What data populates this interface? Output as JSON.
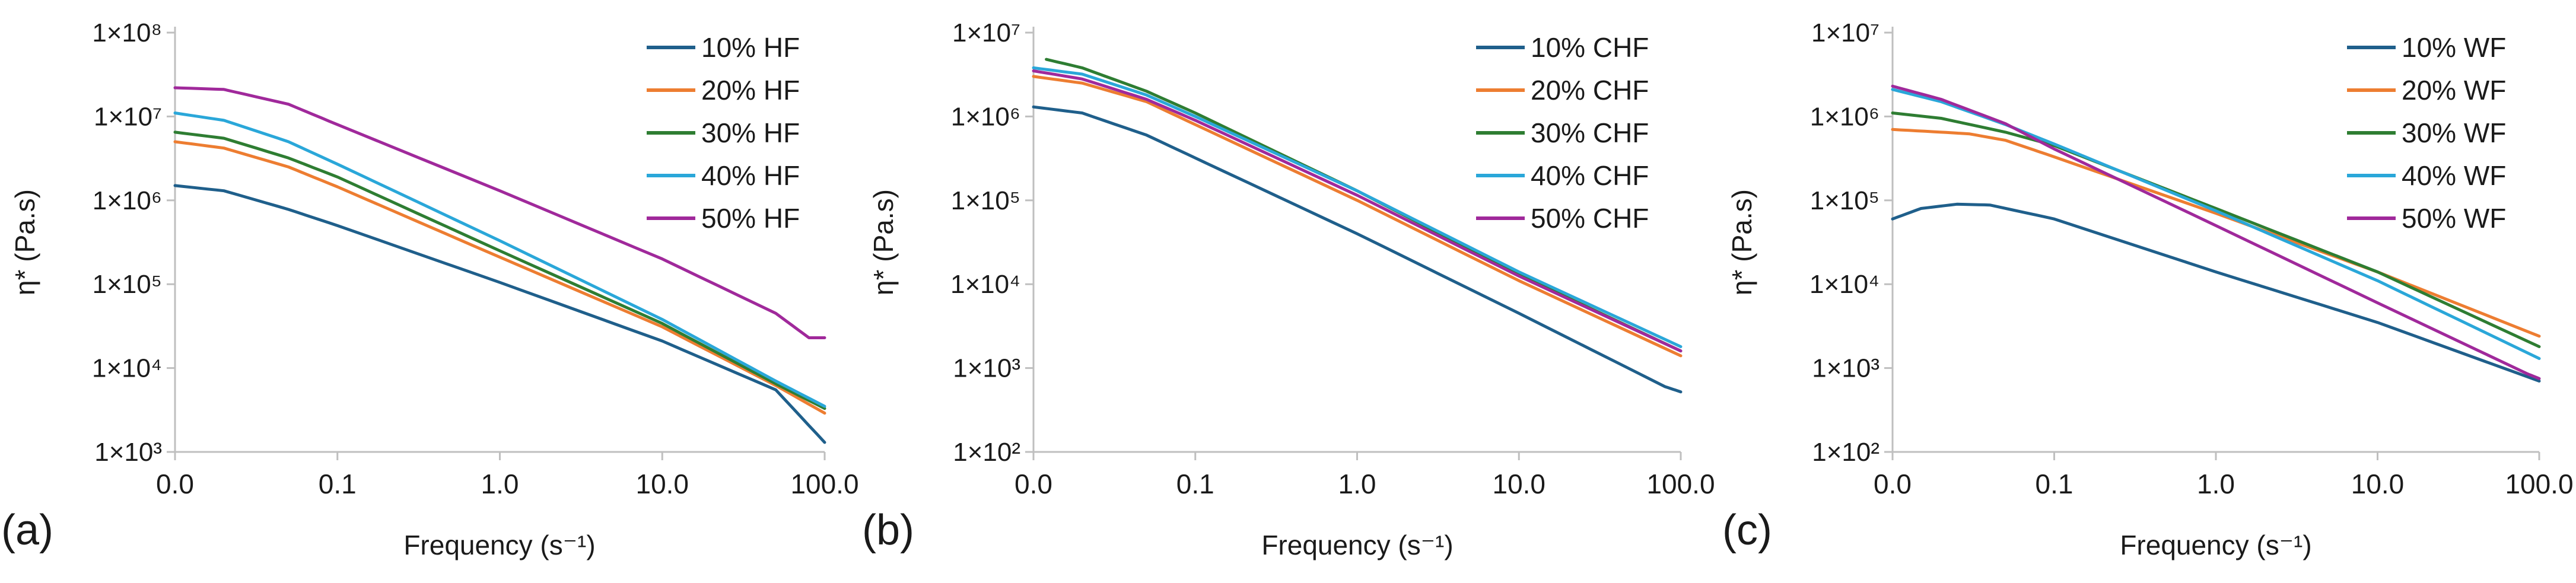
{
  "colors": {
    "axis": "#bfbfbf",
    "text": "#1a1a1a",
    "s10": "#1f5f8b",
    "s20": "#ed7d31",
    "s30": "#2e7d32",
    "s40": "#2aa7d9",
    "s50": "#a0299b"
  },
  "chart_data": [
    {
      "type": "line",
      "panel_label": "(a)",
      "xlabel": "Frequency (s⁻¹)",
      "ylabel": "η* (Pa.s)",
      "xscale": "log",
      "yscale": "log",
      "xlim": [
        0.01,
        100
      ],
      "ylim": [
        1000,
        100000000
      ],
      "xticks": [
        0.01,
        0.1,
        1,
        10,
        100
      ],
      "xtick_labels": [
        "0.0",
        "0.1",
        "1.0",
        "10.0",
        "100.0"
      ],
      "yticks": [
        1000,
        10000,
        100000,
        1000000,
        10000000,
        100000000
      ],
      "ytick_labels": [
        "1×10³",
        "1×10⁴",
        "1×10⁵",
        "1×10⁶",
        "1×10⁷",
        "1×10⁸"
      ],
      "legend_position": "top-right",
      "series": [
        {
          "name": "10% HF",
          "color_key": "s10",
          "x": [
            0.01,
            0.02,
            0.05,
            0.1,
            1,
            10,
            50,
            100
          ],
          "y": [
            1500000,
            1300000,
            780000,
            500000,
            105000,
            21000,
            5500,
            1300
          ]
        },
        {
          "name": "20% HF",
          "color_key": "s20",
          "x": [
            0.01,
            0.02,
            0.05,
            0.1,
            1,
            10,
            50,
            100
          ],
          "y": [
            5000000,
            4200000,
            2500000,
            1450000,
            210000,
            31000,
            6200,
            2900
          ]
        },
        {
          "name": "30% HF",
          "color_key": "s30",
          "x": [
            0.01,
            0.02,
            0.05,
            0.1,
            1,
            10,
            50,
            100
          ],
          "y": [
            6500000,
            5500000,
            3200000,
            1900000,
            250000,
            34000,
            6500,
            3300
          ]
        },
        {
          "name": "40% HF",
          "color_key": "s40",
          "x": [
            0.01,
            0.02,
            0.05,
            0.1,
            1,
            10,
            50,
            100
          ],
          "y": [
            11000000,
            9000000,
            5000000,
            2700000,
            330000,
            38000,
            7000,
            3500
          ]
        },
        {
          "name": "50% HF",
          "color_key": "s50",
          "x": [
            0.01,
            0.02,
            0.05,
            0.1,
            1,
            10,
            50,
            80,
            100
          ],
          "y": [
            22000000,
            21000000,
            14000000,
            8000000,
            1300000,
            200000,
            45000,
            23000,
            23000
          ]
        }
      ]
    },
    {
      "type": "line",
      "panel_label": "(b)",
      "xlabel": "Frequency (s⁻¹)",
      "ylabel": "η* (Pa.s)",
      "xscale": "log",
      "yscale": "log",
      "xlim": [
        0.01,
        100
      ],
      "ylim": [
        100,
        10000000
      ],
      "xticks": [
        0.01,
        0.1,
        1,
        10,
        100
      ],
      "xtick_labels": [
        "0.0",
        "0.1",
        "1.0",
        "10.0",
        "100.0"
      ],
      "yticks": [
        100,
        1000,
        10000,
        100000,
        1000000,
        10000000
      ],
      "ytick_labels": [
        "1×10²",
        "1×10³",
        "1×10⁴",
        "1×10⁵",
        "1×10⁶",
        "1×10⁷"
      ],
      "legend_position": "top-right",
      "series": [
        {
          "name": "10% CHF",
          "color_key": "s10",
          "x": [
            0.01,
            0.02,
            0.05,
            0.1,
            1,
            10,
            80,
            100
          ],
          "y": [
            1300000,
            1100000,
            600000,
            320000,
            40000,
            4500,
            600,
            520
          ]
        },
        {
          "name": "20% CHF",
          "color_key": "s20",
          "x": [
            0.01,
            0.02,
            0.05,
            0.1,
            1,
            10,
            100
          ],
          "y": [
            3000000,
            2500000,
            1500000,
            800000,
            100000,
            11000,
            1400
          ]
        },
        {
          "name": "30% CHF",
          "color_key": "s30",
          "x": [
            0.012,
            0.02,
            0.05,
            0.1,
            1,
            10,
            100
          ],
          "y": [
            4800000,
            3800000,
            2000000,
            1100000,
            130000,
            13000,
            1600
          ]
        },
        {
          "name": "40% CHF",
          "color_key": "s40",
          "x": [
            0.01,
            0.02,
            0.05,
            0.1,
            1,
            10,
            100
          ],
          "y": [
            3800000,
            3200000,
            1800000,
            1000000,
            130000,
            14000,
            1800
          ]
        },
        {
          "name": "50% CHF",
          "color_key": "s50",
          "x": [
            0.01,
            0.02,
            0.05,
            0.1,
            1,
            10,
            100
          ],
          "y": [
            3500000,
            2800000,
            1600000,
            900000,
            115000,
            12500,
            1600
          ]
        }
      ]
    },
    {
      "type": "line",
      "panel_label": "(c)",
      "xlabel": "Frequency (s⁻¹)",
      "ylabel": "η* (Pa.s)",
      "xscale": "log",
      "yscale": "log",
      "xlim": [
        0.01,
        100
      ],
      "ylim": [
        100,
        10000000
      ],
      "xticks": [
        0.01,
        0.1,
        1,
        10,
        100
      ],
      "xtick_labels": [
        "0.0",
        "0.1",
        "1.0",
        "10.0",
        "100.0"
      ],
      "yticks": [
        100,
        1000,
        10000,
        100000,
        1000000,
        10000000
      ],
      "ytick_labels": [
        "1×10²",
        "1×10³",
        "1×10⁴",
        "1×10⁵",
        "1×10⁶",
        "1×10⁷"
      ],
      "legend_position": "top-right",
      "series": [
        {
          "name": "10% WF",
          "color_key": "s10",
          "x": [
            0.01,
            0.015,
            0.025,
            0.04,
            0.1,
            1,
            10,
            100
          ],
          "y": [
            60000,
            80000,
            90000,
            88000,
            60000,
            14000,
            3500,
            700
          ]
        },
        {
          "name": "20% WF",
          "color_key": "s20",
          "x": [
            0.01,
            0.02,
            0.03,
            0.05,
            0.1,
            1,
            10,
            100
          ],
          "y": [
            700000,
            650000,
            620000,
            520000,
            330000,
            70000,
            14000,
            2400
          ]
        },
        {
          "name": "30% WF",
          "color_key": "s30",
          "x": [
            0.01,
            0.02,
            0.05,
            0.1,
            1,
            10,
            100
          ],
          "y": [
            1100000,
            950000,
            650000,
            450000,
            80000,
            14000,
            1800
          ]
        },
        {
          "name": "40% WF",
          "color_key": "s40",
          "x": [
            0.01,
            0.02,
            0.05,
            0.1,
            1,
            10,
            100
          ],
          "y": [
            2100000,
            1500000,
            800000,
            470000,
            75000,
            11000,
            1300
          ]
        },
        {
          "name": "50% WF",
          "color_key": "s50",
          "x": [
            0.01,
            0.02,
            0.05,
            0.1,
            1,
            10,
            85,
            100
          ],
          "y": [
            2300000,
            1600000,
            820000,
            410000,
            50000,
            6000,
            850,
            750
          ]
        }
      ]
    }
  ]
}
